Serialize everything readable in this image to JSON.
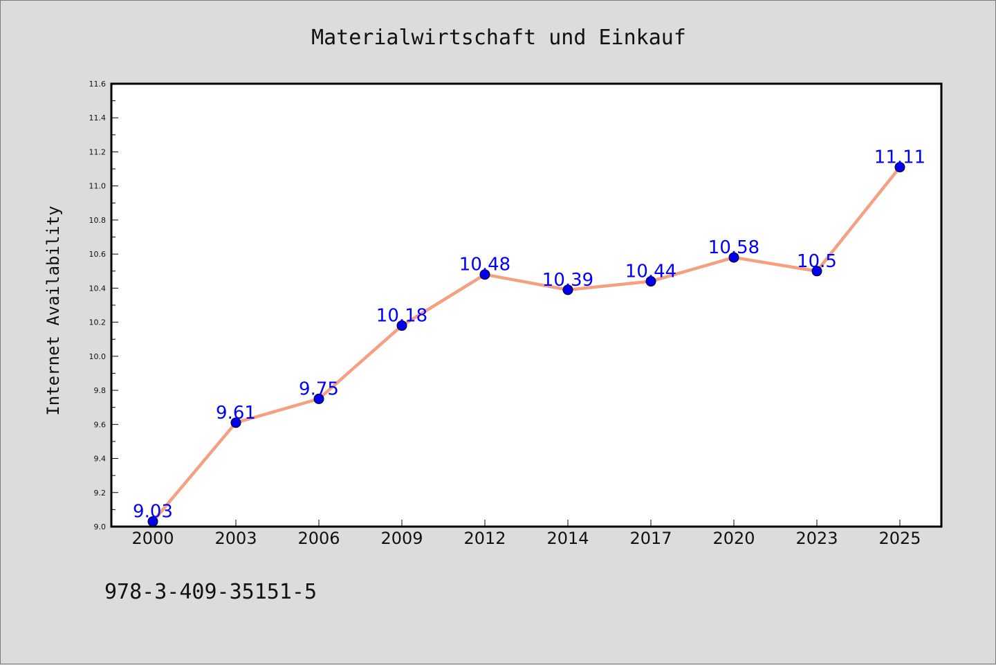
{
  "chart_data": {
    "type": "line",
    "title": "Materialwirtschaft und Einkauf",
    "xlabel": "",
    "ylabel": "Internet Availability",
    "categories": [
      "2000",
      "2003",
      "2006",
      "2009",
      "2012",
      "2014",
      "2017",
      "2020",
      "2023",
      "2025"
    ],
    "series": [
      {
        "values": [
          9.03,
          9.61,
          9.75,
          10.18,
          10.48,
          10.39,
          10.44,
          10.58,
          10.5,
          11.11
        ],
        "labels": [
          "9.03",
          "9.61",
          "9.75",
          "10.18",
          "10.48",
          "10.39",
          "10.44",
          "10.58",
          "10.5",
          "11.11"
        ],
        "line_color": "#f5a080",
        "marker_color": "#0000ee"
      }
    ],
    "ylim": [
      9.0,
      11.6
    ],
    "yticks": [
      "9.0",
      "9.2",
      "9.4",
      "9.6",
      "9.8",
      "10.0",
      "10.2",
      "10.4",
      "10.6",
      "10.8",
      "11.0",
      "11.2",
      "11.4",
      "11.6"
    ],
    "grid": false,
    "label_color": "#0000ff"
  },
  "footer_text": "978-3-409-35151-5"
}
